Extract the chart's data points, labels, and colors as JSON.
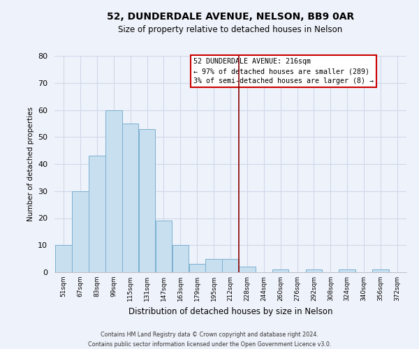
{
  "title": "52, DUNDERDALE AVENUE, NELSON, BB9 0AR",
  "subtitle": "Size of property relative to detached houses in Nelson",
  "xlabel": "Distribution of detached houses by size in Nelson",
  "ylabel": "Number of detached properties",
  "bin_labels": [
    "51sqm",
    "67sqm",
    "83sqm",
    "99sqm",
    "115sqm",
    "131sqm",
    "147sqm",
    "163sqm",
    "179sqm",
    "195sqm",
    "212sqm",
    "228sqm",
    "244sqm",
    "260sqm",
    "276sqm",
    "292sqm",
    "308sqm",
    "324sqm",
    "340sqm",
    "356sqm",
    "372sqm"
  ],
  "bar_values": [
    10,
    30,
    43,
    60,
    55,
    53,
    19,
    10,
    3,
    5,
    5,
    2,
    0,
    1,
    0,
    1,
    0,
    1,
    0,
    1,
    0
  ],
  "bar_color": "#c8dff0",
  "bar_edge_color": "#7ab0d0",
  "vline_x": 10.5,
  "vline_color": "#8b0000",
  "ylim": [
    0,
    80
  ],
  "yticks": [
    0,
    10,
    20,
    30,
    40,
    50,
    60,
    70,
    80
  ],
  "annotation_title": "52 DUNDERDALE AVENUE: 216sqm",
  "annotation_line1": "← 97% of detached houses are smaller (289)",
  "annotation_line2": "3% of semi-detached houses are larger (8) →",
  "footer_line1": "Contains HM Land Registry data © Crown copyright and database right 2024.",
  "footer_line2": "Contains public sector information licensed under the Open Government Licence v3.0.",
  "background_color": "#eef2fa",
  "grid_color": "#d0d8e8"
}
